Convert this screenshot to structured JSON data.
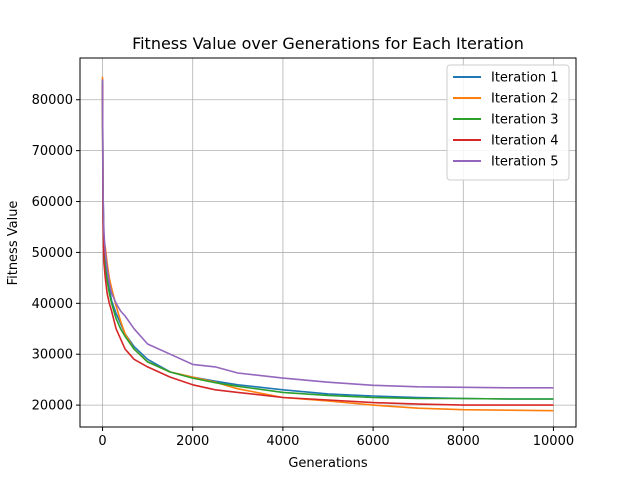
{
  "chart_data": {
    "type": "line",
    "title": "Fitness Value over Generations for Each Iteration",
    "xlabel": "Generations",
    "ylabel": "Fitness Value",
    "xlim": [
      -500,
      10500
    ],
    "ylim": [
      15700,
      88200
    ],
    "xticks": [
      0,
      2000,
      4000,
      6000,
      8000,
      10000
    ],
    "yticks": [
      20000,
      30000,
      40000,
      50000,
      60000,
      70000,
      80000
    ],
    "grid": true,
    "legend_position": "top-right",
    "series": [
      {
        "name": "Iteration 1",
        "color": "#1f77b4",
        "x": [
          0,
          10,
          30,
          60,
          100,
          150,
          200,
          300,
          400,
          500,
          700,
          1000,
          1500,
          2000,
          2500,
          3000,
          4000,
          5000,
          6000,
          7000,
          8000,
          9000,
          10000
        ],
        "y": [
          84000,
          62000,
          53000,
          48000,
          45000,
          43000,
          40500,
          38000,
          36000,
          34000,
          31500,
          29000,
          26500,
          25500,
          24700,
          24000,
          23000,
          22200,
          21800,
          21500,
          21300,
          21200,
          21200
        ]
      },
      {
        "name": "Iteration 2",
        "color": "#ff7f0e",
        "x": [
          0,
          10,
          30,
          60,
          100,
          150,
          200,
          300,
          400,
          500,
          700,
          1000,
          1500,
          2000,
          2500,
          3000,
          4000,
          5000,
          6000,
          7000,
          8000,
          9000,
          10000
        ],
        "y": [
          84500,
          60000,
          52500,
          51000,
          48000,
          45000,
          43000,
          39500,
          36500,
          34000,
          31000,
          28500,
          26500,
          25500,
          24500,
          23200,
          21500,
          20800,
          20000,
          19400,
          19100,
          19000,
          18900
        ]
      },
      {
        "name": "Iteration 3",
        "color": "#2ca02c",
        "x": [
          0,
          10,
          30,
          60,
          100,
          150,
          200,
          300,
          400,
          500,
          700,
          1000,
          1500,
          2000,
          2500,
          3000,
          4000,
          5000,
          6000,
          7000,
          8000,
          9000,
          10000
        ],
        "y": [
          83500,
          58000,
          50000,
          47000,
          44500,
          42000,
          40000,
          37000,
          35000,
          33500,
          31000,
          28500,
          26500,
          25300,
          24400,
          23700,
          22500,
          21900,
          21500,
          21300,
          21300,
          21200,
          21200
        ]
      },
      {
        "name": "Iteration 4",
        "color": "#d62728",
        "x": [
          0,
          10,
          30,
          60,
          100,
          150,
          200,
          300,
          400,
          500,
          700,
          1000,
          1500,
          2000,
          2500,
          3000,
          4000,
          5000,
          6000,
          7000,
          8000,
          9000,
          10000
        ],
        "y": [
          83000,
          57000,
          48000,
          45000,
          42000,
          40000,
          38500,
          35000,
          33000,
          31000,
          29000,
          27500,
          25500,
          24000,
          23000,
          22500,
          21500,
          21000,
          20500,
          20200,
          20000,
          20000,
          20000
        ]
      },
      {
        "name": "Iteration 5",
        "color": "#9467bd",
        "x": [
          0,
          10,
          30,
          60,
          100,
          150,
          200,
          300,
          400,
          500,
          700,
          1000,
          1500,
          2000,
          2500,
          3000,
          4000,
          5000,
          6000,
          7000,
          8000,
          9000,
          10000
        ],
        "y": [
          84000,
          62000,
          54000,
          50000,
          47000,
          44000,
          42000,
          40000,
          38500,
          37500,
          35000,
          32000,
          30000,
          28000,
          27500,
          26300,
          25300,
          24500,
          23900,
          23600,
          23500,
          23400,
          23400
        ]
      }
    ]
  }
}
